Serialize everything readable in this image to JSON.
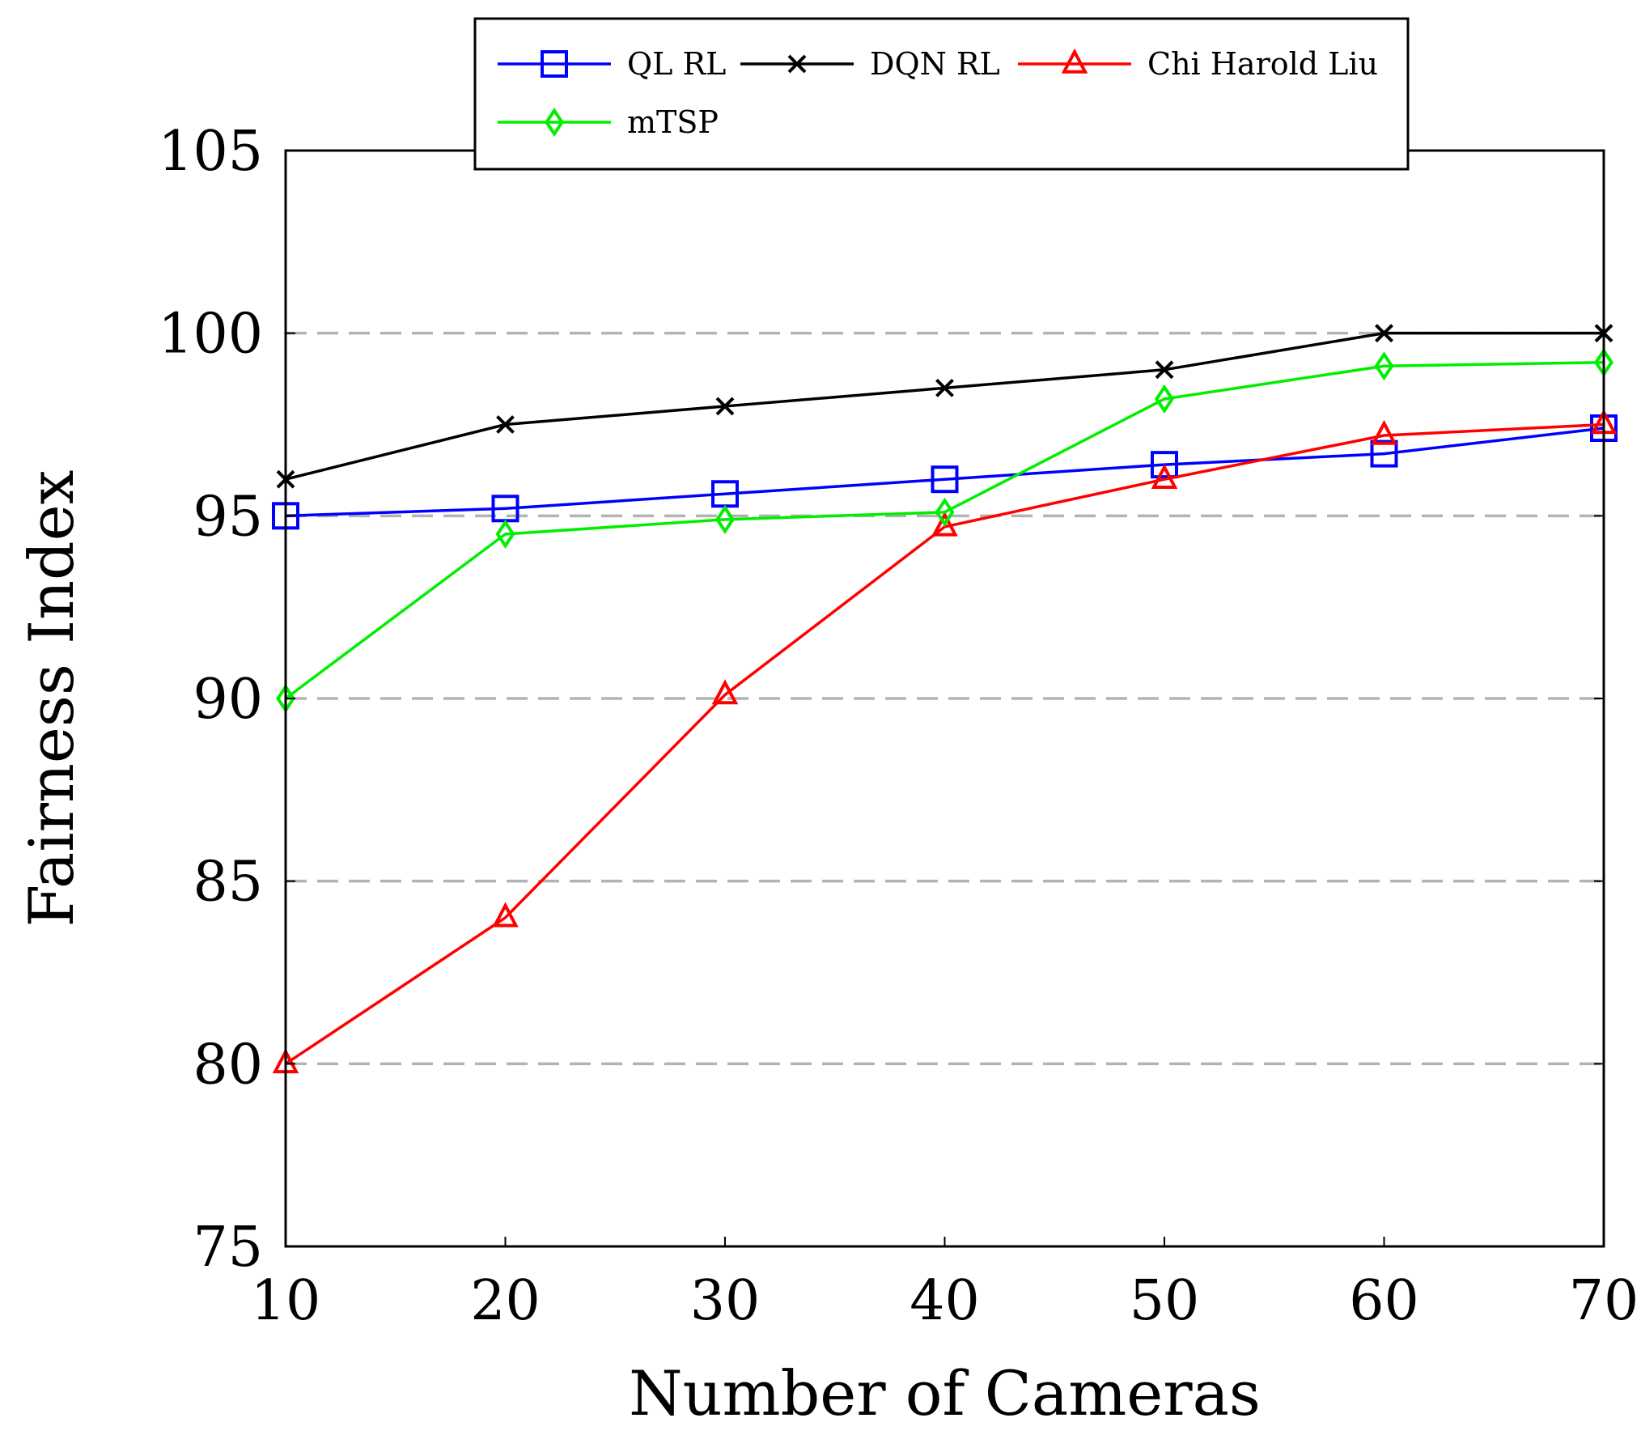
{
  "chart_data": {
    "type": "line",
    "title": "",
    "xlabel": "Number of Cameras",
    "ylabel": "Fairness Index",
    "x": [
      10,
      20,
      30,
      40,
      50,
      60,
      70
    ],
    "xlim": [
      10,
      70
    ],
    "ylim": [
      75,
      105
    ],
    "xticks": [
      "10",
      "20",
      "30",
      "40",
      "50",
      "60",
      "70"
    ],
    "yticks": [
      "75",
      "80",
      "85",
      "90",
      "95",
      "100",
      "105"
    ],
    "grid": "horizontal dashed",
    "legend_position": "top-center",
    "series": [
      {
        "name": "QL RL",
        "color": "#0000ff",
        "marker": "square",
        "values": [
          95.0,
          95.2,
          95.6,
          96.0,
          96.4,
          96.7,
          97.4
        ]
      },
      {
        "name": "DQN RL",
        "color": "#000000",
        "marker": "x",
        "values": [
          96.0,
          97.5,
          98.0,
          98.5,
          99.0,
          100.0,
          100.0
        ]
      },
      {
        "name": "Chi Harold Liu",
        "color": "#ff0000",
        "marker": "triangle",
        "values": [
          80.0,
          84.0,
          90.1,
          94.7,
          96.0,
          97.2,
          97.5
        ]
      },
      {
        "name": "mTSP",
        "color": "#00ee00",
        "marker": "diamond",
        "values": [
          90.0,
          94.5,
          94.9,
          95.1,
          98.2,
          99.1,
          99.2
        ]
      }
    ]
  }
}
